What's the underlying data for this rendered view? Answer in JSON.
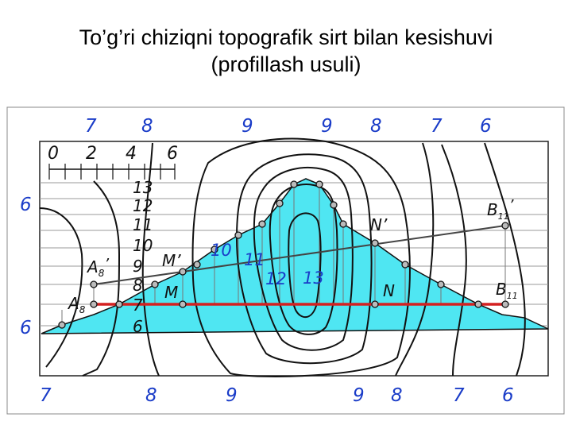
{
  "title": {
    "line1": "To’g’ri chiziqni topografik sirt bilan kesishuvi",
    "line2": "(profillash  usuli)"
  },
  "scale": {
    "labels": [
      "0",
      "2",
      "4",
      "6"
    ]
  },
  "profile_scale": {
    "labels": [
      "13",
      "12",
      "11",
      "10",
      "9",
      "8",
      "7",
      "6"
    ]
  },
  "contour_labels": {
    "top": [
      "7",
      "8",
      "9",
      "9",
      "8",
      "7",
      "6"
    ],
    "bottom": [
      "7",
      "8",
      "9",
      "9",
      "8",
      "7",
      "6"
    ],
    "left": [
      "6",
      "6"
    ],
    "inner": [
      "10",
      "11",
      "12",
      "13"
    ]
  },
  "points": {
    "A8": "A",
    "A8_sub": "8",
    "A8p": "A",
    "A8p_sub": "8",
    "B11": "B",
    "B11_sub": "11",
    "B11p": "B",
    "B11p_sub": "11",
    "M": "M",
    "Mp": "M’",
    "N": "N",
    "Np": "N’"
  },
  "colors": {
    "profile_fill": "#4fe6f2",
    "line_red": "#d42020",
    "label_blue": "#1a3cc8"
  }
}
